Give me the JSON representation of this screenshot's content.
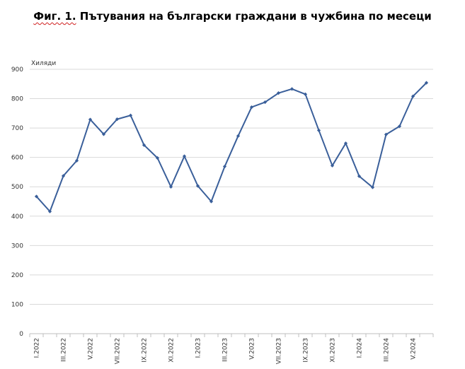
{
  "chart_data": {
    "type": "line",
    "title_prefix": "Фиг. 1.",
    "title_main": "Пътувания на български граждани в чужбина по месеци",
    "ylabel": "Хиляди",
    "xlabel": "",
    "ylim": [
      0,
      900
    ],
    "yticks": [
      0,
      100,
      200,
      300,
      400,
      500,
      600,
      700,
      800,
      900
    ],
    "grid": true,
    "legend": "none",
    "line_color": "#3a5f9a",
    "x": [
      "I.2022",
      "II.2022",
      "III.2022",
      "IV.2022",
      "V.2022",
      "VI.2022",
      "VII.2022",
      "VIII.2022",
      "IX.2022",
      "X.2022",
      "XI.2022",
      "XII.2022",
      "I.2023",
      "II.2023",
      "III.2023",
      "IV.2023",
      "V.2023",
      "VI.2023",
      "VII.2023",
      "VIII.2023",
      "IX.2023",
      "X.2023",
      "XI.2023",
      "XII.2023",
      "I.2024",
      "II.2024",
      "III.2024",
      "IV.2024",
      "V.2024",
      "VI.2024"
    ],
    "x_tick_labels": [
      "I.2022",
      "",
      "III.2022",
      "",
      "V.2022",
      "",
      "VII.2022",
      "",
      "IX.2022",
      "",
      "XI.2022",
      "",
      "I.2023",
      "",
      "III.2023",
      "",
      "V.2023",
      "",
      "VII.2023",
      "",
      "IX.2023",
      "",
      "XI.2023",
      "",
      "I.2024",
      "",
      "III.2024",
      "",
      "V.2024",
      ""
    ],
    "series": [
      {
        "values": [
          467,
          416,
          537,
          589,
          729,
          679,
          730,
          743,
          642,
          598,
          500,
          604,
          503,
          450,
          569,
          673,
          771,
          788,
          819,
          833,
          815,
          692,
          572,
          648,
          536,
          498,
          678,
          706,
          808,
          854
        ]
      }
    ]
  }
}
